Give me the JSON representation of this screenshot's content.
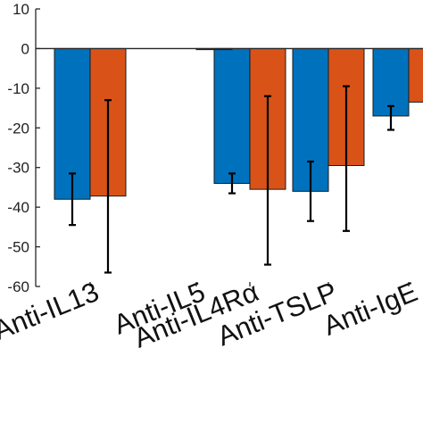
{
  "chart_data": {
    "type": "bar",
    "title": "",
    "xlabel": "",
    "ylabel": "",
    "ylim": [
      -60,
      10
    ],
    "yticks": [
      10,
      0,
      -10,
      -20,
      -30,
      -40,
      -50,
      -60
    ],
    "grid": false,
    "legend": "none",
    "categories": [
      "Anti-IL13",
      "Anti-IL5",
      "Anti-IL4Rα",
      "Anti-TSLP",
      "Anti-IgE"
    ],
    "series": [
      {
        "color": "#0072BD",
        "values": [
          -38,
          null,
          -34,
          -36,
          -17
        ],
        "error_low": [
          -44.5,
          null,
          -36.5,
          -43.5,
          -20.5
        ],
        "error_high": [
          -31.5,
          null,
          -31.5,
          -28.5,
          -14.5
        ]
      },
      {
        "color": "#D95319",
        "values": [
          -37.2,
          -0.2,
          -35.5,
          -29.5,
          -13.5
        ],
        "error_low": [
          -56.5,
          null,
          -54.5,
          -46,
          null
        ],
        "error_high": [
          -13,
          null,
          -12,
          -9.5,
          null
        ]
      }
    ]
  }
}
